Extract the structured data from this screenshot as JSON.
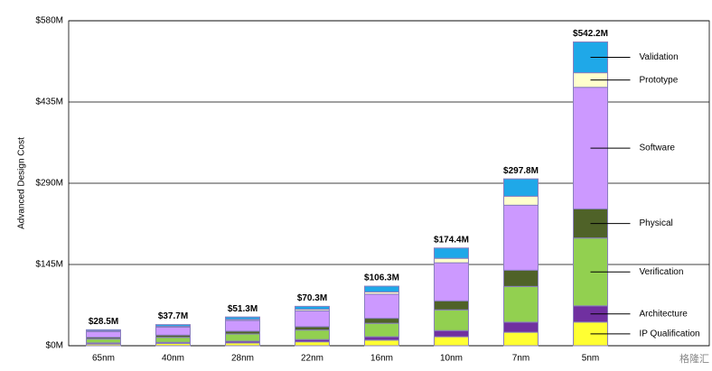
{
  "chart_data": {
    "type": "stacked_bar",
    "y_label": "Advanced Design Cost",
    "categories": [
      "65nm",
      "40nm",
      "28nm",
      "22nm",
      "16nm",
      "10nm",
      "7nm",
      "5nm"
    ],
    "series": [
      {
        "name": "IP Qualification",
        "color": "#ffff33",
        "values": [
          3,
          4,
          5,
          7,
          10,
          16,
          24,
          42.2
        ]
      },
      {
        "name": "Architecture",
        "color": "#7030a0",
        "values": [
          2,
          2,
          3,
          4,
          6,
          11,
          18,
          29
        ]
      },
      {
        "name": "Verification",
        "color": "#92d050",
        "values": [
          7,
          9,
          13,
          17,
          24,
          37,
          63.8,
          121
        ]
      },
      {
        "name": "Physical",
        "color": "#4f6228",
        "values": [
          3,
          4,
          5,
          6,
          9,
          16,
          29,
          52
        ]
      },
      {
        "name": "Software",
        "color": "#cc99ff",
        "values": [
          10,
          14,
          19,
          28,
          43,
          68,
          116,
          217
        ]
      },
      {
        "name": "Prototype",
        "color": "#ffffcc",
        "values": [
          1.5,
          1.5,
          2,
          3,
          4,
          8,
          16,
          26
        ]
      },
      {
        "name": "Validation",
        "color": "#1fa8e8",
        "values": [
          2,
          3.2,
          4.3,
          5.3,
          10.3,
          18.4,
          31,
          55
        ]
      }
    ],
    "totals": {
      "values": [
        28.5,
        37.7,
        51.3,
        70.3,
        106.3,
        174.4,
        297.8,
        542.2
      ],
      "value_labels": [
        "$28.5M",
        "$37.7M",
        "$51.3M",
        "$70.3M",
        "$106.3M",
        "$174.4M",
        "$297.8M",
        "$542.2M"
      ]
    },
    "ylim": [
      0,
      580
    ],
    "yticks": [
      {
        "value": 0,
        "label": "$0M"
      },
      {
        "value": 145,
        "label": "$145M"
      },
      {
        "value": 290,
        "label": "$290M"
      },
      {
        "value": 435,
        "label": "$435M"
      },
      {
        "value": 580,
        "label": "$580M"
      }
    ],
    "grid": true,
    "watermark": "格隆汇"
  }
}
